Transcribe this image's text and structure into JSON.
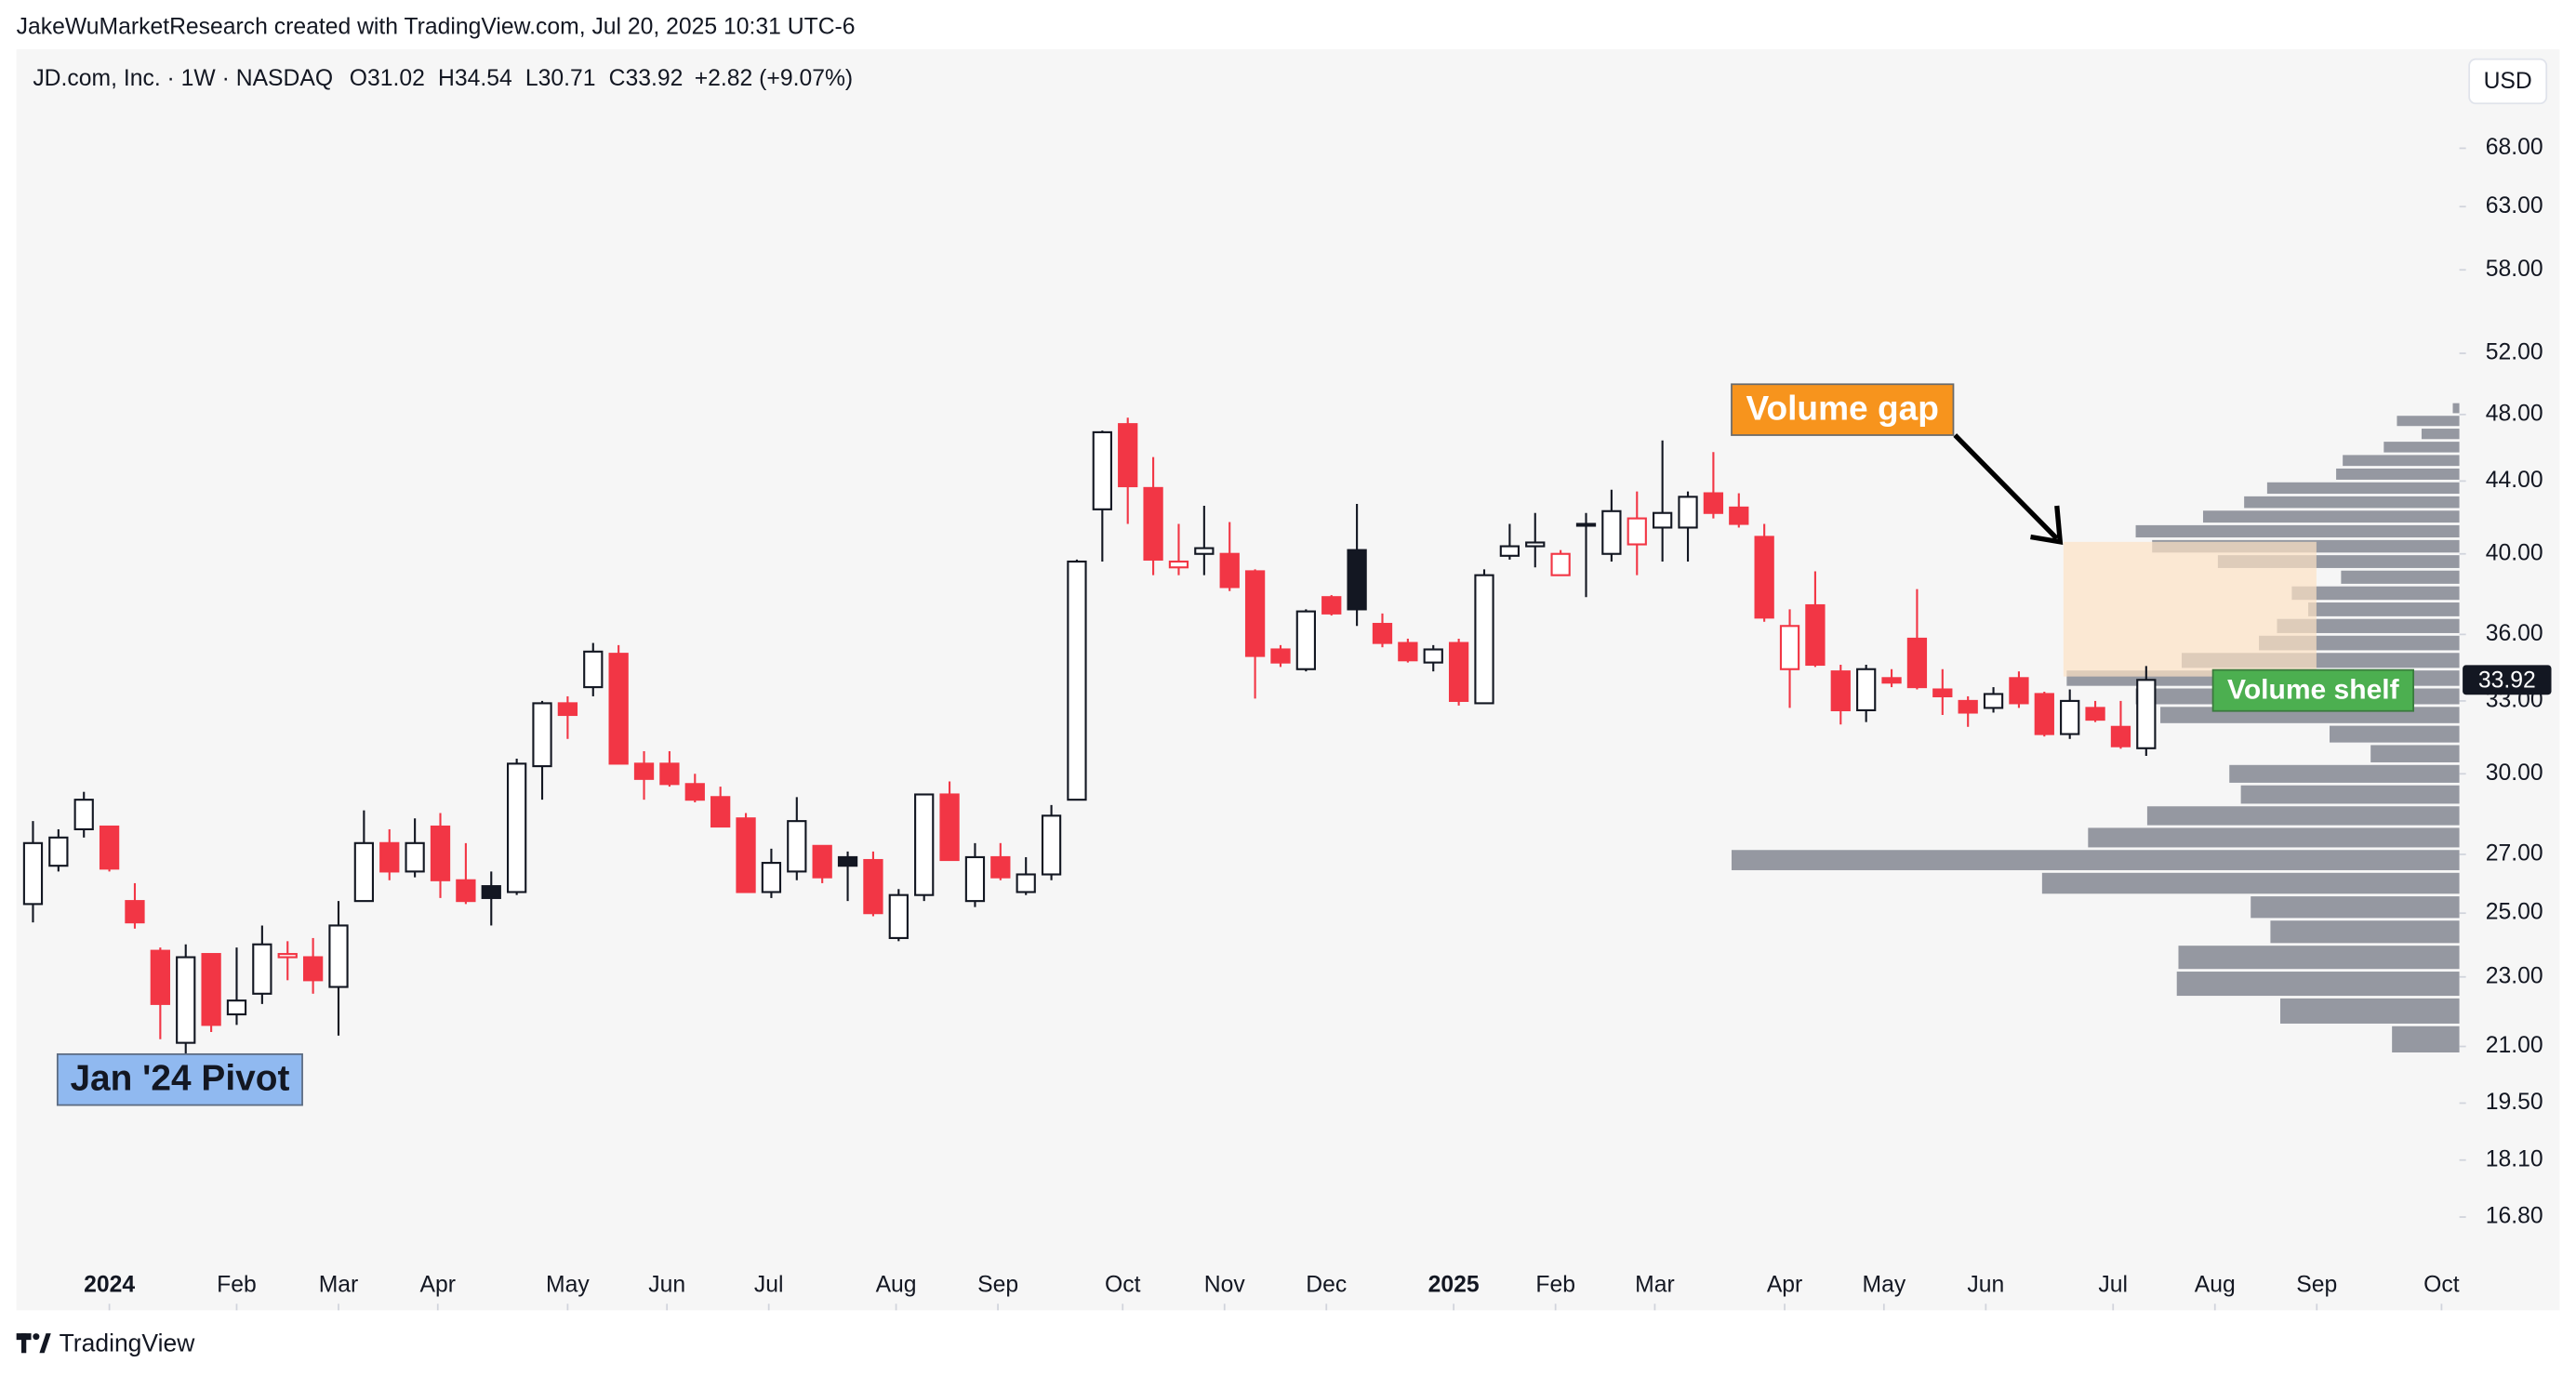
{
  "header": "JakeWuMarketResearch created with TradingView.com, Jul 20, 2025 10:31 UTC-6",
  "currency": "USD",
  "footer": "TradingView",
  "chart_data": {
    "type": "candlestick",
    "title": "JD.com, Inc. · 1W · NASDAQ",
    "legend_labels": [
      "O",
      "H",
      "L",
      "C"
    ],
    "change_label": "+2.82 (+9.07%)",
    "log_scale": true,
    "style": "hollow",
    "up_color": "#131722",
    "down_color": "#f23645",
    "candles": {
      "open": [
        25.3,
        26.6,
        27.9,
        28.0,
        25.4,
        23.8,
        21.1,
        23.7,
        21.9,
        22.5,
        23.6,
        23.6,
        22.7,
        25.4,
        27.4,
        26.4,
        28.0,
        26.1,
        25.9,
        25.7,
        30.3,
        32.9,
        33.6,
        35.1,
        30.4,
        30.4,
        29.6,
        29.1,
        28.3,
        25.7,
        26.4,
        27.3,
        26.9,
        26.8,
        24.2,
        25.6,
        29.2,
        25.4,
        26.9,
        25.7,
        26.3,
        29.0,
        42.4,
        47.4,
        43.6,
        39.3,
        40.0,
        40.0,
        39.1,
        35.3,
        34.4,
        37.8,
        40.2,
        36.5,
        35.6,
        34.7,
        35.6,
        32.9,
        39.9,
        40.4,
        38.9,
        41.5,
        40.0,
        40.5,
        41.4,
        41.4,
        43.3,
        42.5,
        40.9,
        34.4,
        37.4,
        34.3,
        32.6,
        34.0,
        35.8,
        33.5,
        33.0,
        32.7,
        34.0,
        33.3,
        31.6,
        32.7,
        31.9,
        31.02
      ],
      "high": [
        28.2,
        27.9,
        29.3,
        28.0,
        26.0,
        23.9,
        24.0,
        23.7,
        23.9,
        24.6,
        24.1,
        24.2,
        25.4,
        28.6,
        27.9,
        28.3,
        28.5,
        27.4,
        26.4,
        30.6,
        33.0,
        33.2,
        35.6,
        35.5,
        30.9,
        30.9,
        30.0,
        29.5,
        28.5,
        27.2,
        29.1,
        27.3,
        27.1,
        27.1,
        25.8,
        29.2,
        29.7,
        27.4,
        27.4,
        26.9,
        28.8,
        39.7,
        47.0,
        47.8,
        45.4,
        41.6,
        42.6,
        41.7,
        39.2,
        35.5,
        37.2,
        37.9,
        42.7,
        37.0,
        35.8,
        35.5,
        35.8,
        39.2,
        41.6,
        42.2,
        40.2,
        42.2,
        43.5,
        43.4,
        46.4,
        43.4,
        45.7,
        43.3,
        41.6,
        37.2,
        39.1,
        34.6,
        34.6,
        34.4,
        38.2,
        34.4,
        33.2,
        33.6,
        34.3,
        33.4,
        33.5,
        33.0,
        33.0,
        34.54
      ],
      "low": [
        24.7,
        26.4,
        27.6,
        26.4,
        24.5,
        21.2,
        20.8,
        21.4,
        21.6,
        22.2,
        22.9,
        22.5,
        21.3,
        25.4,
        26.1,
        26.2,
        25.5,
        25.3,
        24.6,
        25.6,
        29.0,
        31.4,
        33.2,
        30.4,
        29.0,
        29.5,
        28.9,
        28.0,
        25.7,
        25.5,
        26.1,
        26.0,
        25.4,
        24.9,
        24.1,
        25.4,
        26.8,
        25.2,
        26.1,
        25.6,
        26.1,
        29.0,
        39.6,
        41.6,
        38.9,
        38.9,
        38.9,
        38.1,
        33.1,
        34.5,
        34.3,
        36.9,
        36.4,
        35.4,
        34.7,
        34.3,
        32.8,
        32.9,
        39.7,
        39.3,
        38.9,
        37.8,
        39.6,
        38.9,
        39.6,
        39.6,
        41.9,
        41.4,
        36.6,
        32.7,
        34.5,
        32.0,
        32.1,
        33.6,
        33.5,
        32.4,
        31.9,
        32.5,
        32.7,
        31.5,
        31.4,
        32.1,
        31.0,
        30.71
      ],
      "close": [
        27.4,
        27.6,
        29.0,
        26.5,
        24.7,
        22.2,
        23.6,
        21.6,
        22.3,
        24.0,
        23.7,
        22.9,
        24.6,
        27.4,
        26.4,
        27.4,
        26.1,
        25.4,
        25.5,
        30.4,
        32.9,
        32.4,
        35.2,
        30.4,
        29.8,
        29.6,
        29.0,
        28.0,
        25.7,
        26.7,
        28.2,
        26.2,
        26.6,
        25.0,
        25.6,
        29.2,
        26.8,
        26.9,
        26.2,
        26.3,
        28.4,
        39.6,
        46.9,
        43.7,
        39.7,
        39.6,
        40.3,
        38.3,
        35.0,
        34.7,
        37.1,
        37.0,
        37.2,
        35.6,
        34.8,
        35.3,
        33.0,
        38.9,
        40.4,
        40.6,
        40.0,
        41.6,
        42.3,
        41.9,
        42.2,
        43.1,
        42.2,
        41.6,
        36.8,
        36.4,
        34.6,
        32.6,
        34.4,
        33.8,
        33.6,
        33.2,
        32.5,
        33.3,
        32.9,
        31.6,
        33.0,
        32.2,
        31.1,
        33.92
      ]
    },
    "xlim": [
      -0.65,
      95.3
    ],
    "xticks": [
      {
        "value": 3,
        "label": "2024"
      },
      {
        "value": 8,
        "label": "Feb"
      },
      {
        "value": 12,
        "label": "Mar"
      },
      {
        "value": 15.9,
        "label": "Apr"
      },
      {
        "value": 21,
        "label": "May"
      },
      {
        "value": 24.9,
        "label": "Jun"
      },
      {
        "value": 28.9,
        "label": "Jul"
      },
      {
        "value": 33.9,
        "label": "Aug"
      },
      {
        "value": 37.9,
        "label": "Sep"
      },
      {
        "value": 42.8,
        "label": "Oct"
      },
      {
        "value": 46.8,
        "label": "Nov"
      },
      {
        "value": 50.8,
        "label": "Dec"
      },
      {
        "value": 55.8,
        "label": "2025"
      },
      {
        "value": 59.8,
        "label": "Feb"
      },
      {
        "value": 63.7,
        "label": "Mar"
      },
      {
        "value": 68.8,
        "label": "Apr"
      },
      {
        "value": 72.7,
        "label": "May"
      },
      {
        "value": 76.7,
        "label": "Jun"
      },
      {
        "value": 81.7,
        "label": "Jul"
      },
      {
        "value": 85.7,
        "label": "Aug"
      },
      {
        "value": 89.7,
        "label": "Sep"
      },
      {
        "value": 94.6,
        "label": "Oct"
      }
    ],
    "ylim": [
      14.87,
      77.4
    ],
    "yticks": [
      {
        "value": 16.8,
        "label": "16.80"
      },
      {
        "value": 18.1,
        "label": "18.10"
      },
      {
        "value": 19.5,
        "label": "19.50"
      },
      {
        "value": 21,
        "label": "21.00"
      },
      {
        "value": 23,
        "label": "23.00"
      },
      {
        "value": 25,
        "label": "25.00"
      },
      {
        "value": 27,
        "label": "27.00"
      },
      {
        "value": 30,
        "label": "30.00"
      },
      {
        "value": 33,
        "label": "33.00"
      },
      {
        "value": 36,
        "label": "36.00"
      },
      {
        "value": 40,
        "label": "40.00"
      },
      {
        "value": 44,
        "label": "44.00"
      },
      {
        "value": 48,
        "label": "48.00"
      },
      {
        "value": 52,
        "label": "52.00"
      },
      {
        "value": 58,
        "label": "58.00"
      },
      {
        "value": 63,
        "label": "63.00"
      },
      {
        "value": 68,
        "label": "68.00"
      }
    ],
    "volume_profile": {
      "color": "#9598a1",
      "bins": [
        20.8,
        21.6,
        22.4,
        23.2,
        24.0,
        24.8,
        25.6,
        26.4,
        27.2,
        28.0,
        28.8,
        29.6,
        30.4,
        31.2,
        32.0,
        32.8,
        33.6,
        34.4,
        35.2,
        36.0,
        36.8,
        37.6,
        38.4,
        39.2,
        40.0,
        40.8,
        41.6,
        42.4,
        43.2,
        44.0,
        44.8,
        45.6,
        46.4,
        47.2,
        48.0,
        48.8
      ],
      "volumes": [
        41,
        109,
        172,
        171,
        115,
        127,
        254,
        443,
        226,
        190,
        133,
        140,
        54,
        79,
        182,
        197,
        239,
        169,
        122,
        111,
        92,
        102,
        72,
        147,
        187,
        197,
        156,
        131,
        117,
        75,
        71,
        46,
        23,
        38,
        4
      ]
    },
    "annotations": [
      "Jan '24 Pivot",
      "Volume gap",
      "Volume shelf"
    ]
  }
}
